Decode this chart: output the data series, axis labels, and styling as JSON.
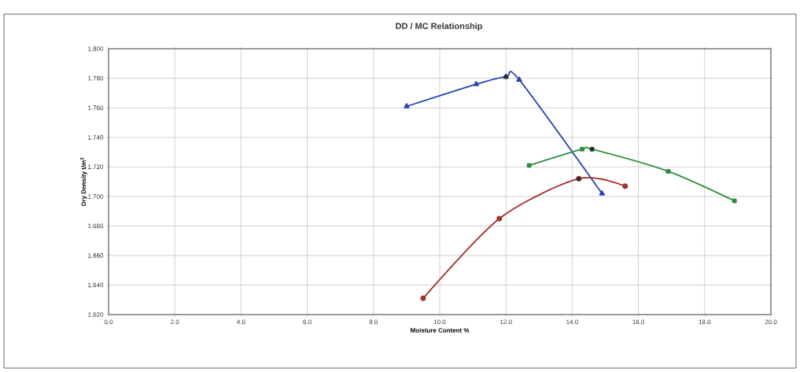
{
  "chart_data": {
    "type": "line",
    "title": "DD / MC Relationship",
    "xlabel": "Moisture Content %",
    "ylabel": "Dry Density t/m$^{3}$",
    "xlim": [
      0,
      20
    ],
    "xticks": [
      {
        "value": 0,
        "label": "0.0"
      },
      {
        "value": 2,
        "label": "2.0"
      },
      {
        "value": 4,
        "label": "4.0"
      },
      {
        "value": 6,
        "label": "6.0"
      },
      {
        "value": 8,
        "label": "8.0"
      },
      {
        "value": 10,
        "label": "10.0"
      },
      {
        "value": 12,
        "label": "12.0"
      },
      {
        "value": 14,
        "label": "14.0"
      },
      {
        "value": 16,
        "label": "16.0"
      },
      {
        "value": 18,
        "label": "18.0"
      },
      {
        "value": 20,
        "label": "20.0"
      }
    ],
    "ylim": [
      1.62,
      1.8
    ],
    "yticks": [
      {
        "value": 1.62,
        "label": "1.620"
      },
      {
        "value": 1.64,
        "label": "1.640"
      },
      {
        "value": 1.66,
        "label": "1.660"
      },
      {
        "value": 1.68,
        "label": "1.680"
      },
      {
        "value": 1.7,
        "label": "1.700"
      },
      {
        "value": 1.72,
        "label": "1.720"
      },
      {
        "value": 1.74,
        "label": "1.740"
      },
      {
        "value": 1.76,
        "label": "1.760"
      },
      {
        "value": 1.78,
        "label": "1.780"
      },
      {
        "value": 1.8,
        "label": "1.800"
      }
    ],
    "grid": true,
    "series": [
      {
        "color": "#2a46b0",
        "marker": "triangle",
        "x": [
          9.0,
          11.1,
          12.0,
          12.4,
          14.9
        ],
        "values": [
          1.761,
          1.776,
          1.781,
          1.779,
          1.702
        ]
      },
      {
        "color": "#2e8b3e",
        "marker": "square",
        "x": [
          12.7,
          14.3,
          14.6,
          16.9,
          18.9
        ],
        "values": [
          1.721,
          1.732,
          1.732,
          1.717,
          1.697
        ]
      },
      {
        "color": "#a0322e",
        "marker": "circle",
        "x": [
          9.5,
          11.8,
          14.2,
          15.6
        ],
        "values": [
          1.631,
          1.685,
          1.712,
          1.707
        ]
      },
      {
        "type": "scatter",
        "color": "#2a2a2a",
        "marker": "circle",
        "x": [
          12.0,
          14.6,
          14.2
        ],
        "values": [
          1.781,
          1.732,
          1.712
        ]
      }
    ]
  }
}
